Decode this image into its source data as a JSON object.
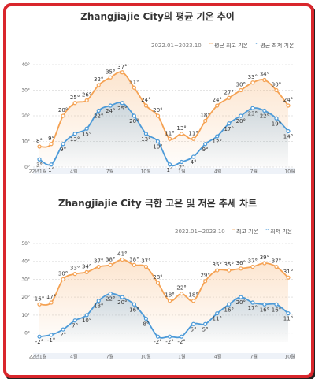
{
  "chart_data": [
    {
      "type": "line",
      "title": "Zhangjiajie City의 평균 기온 추이",
      "period": "2022.01~2023.10",
      "legend": [
        {
          "name": "평균 최고 기온",
          "color": "#f5a253"
        },
        {
          "name": "평균 최저 기온",
          "color": "#4c9ad8"
        }
      ],
      "yticks": [
        "0°",
        "10°",
        "20°",
        "30°",
        "40°"
      ],
      "ylim": [
        0,
        40
      ],
      "xticks": [
        "22년1월",
        "4월",
        "7월",
        "10월",
        "1월",
        "4월",
        "7월",
        "10월"
      ],
      "series": [
        {
          "name": "평균 최고 기온",
          "color": "#f5a253",
          "values": [
            8,
            9,
            20,
            25,
            26,
            32,
            35,
            37,
            31,
            24,
            20,
            11,
            13,
            11,
            18,
            24,
            27,
            30,
            33,
            34,
            30,
            24
          ],
          "labels": [
            "8°",
            "9°",
            "20°",
            "25°",
            "26°",
            "32°",
            "35°",
            "37°",
            "31°",
            "24°",
            "20°",
            "11°",
            "13°",
            "11°",
            "18°",
            "24°",
            "27°",
            "30°",
            "33°",
            "34°",
            "30°",
            "24°"
          ]
        },
        {
          "name": "평균 최저 기온",
          "color": "#4c9ad8",
          "values": [
            3,
            1,
            9,
            13,
            15,
            22,
            24,
            25,
            20,
            13,
            10,
            1,
            2,
            4,
            9,
            12,
            17,
            20,
            23,
            22,
            19,
            14
          ],
          "labels": [
            "3°",
            "1°",
            "9°",
            "13°",
            "15°",
            "22°",
            "24°",
            "25°",
            "20°",
            "13°",
            "10°",
            "1°",
            "2°",
            "4°",
            "9°",
            "12°",
            "17°",
            "20°",
            "23°",
            "22°",
            "19°",
            "14°"
          ]
        }
      ]
    },
    {
      "type": "line",
      "title": "Zhangjiajie City 극한 고온 및 저온 추세 차트",
      "period": "2022.01~2023.10",
      "legend": [
        {
          "name": "최고 기온",
          "color": "#f5a253"
        },
        {
          "name": "최저 기온",
          "color": "#4c9ad8"
        }
      ],
      "yticks": [
        "0°",
        "10°",
        "20°",
        "30°",
        "40°",
        "50°"
      ],
      "ylim": [
        -5,
        50
      ],
      "xticks": [
        "22년1월",
        "4월",
        "7월",
        "10월",
        "1월",
        "4월",
        "7월",
        "10월"
      ],
      "series": [
        {
          "name": "최고 기온",
          "color": "#f5a253",
          "values": [
            16,
            17,
            30,
            33,
            34,
            37,
            38,
            41,
            38,
            37,
            28,
            18,
            22,
            18,
            29,
            35,
            35,
            36,
            37,
            39,
            37,
            31
          ],
          "labels": [
            "16°",
            "17°",
            "30°",
            "33°",
            "34°",
            "37°",
            "38°",
            "41°",
            "38°",
            "37°",
            "28°",
            "18°",
            "22°",
            "18°",
            "29°",
            "35°",
            "35°",
            "36°",
            "37°",
            "39°",
            "37°",
            "31°"
          ]
        },
        {
          "name": "최저 기온",
          "color": "#4c9ad8",
          "values": [
            -2,
            -1,
            2,
            7,
            10,
            18,
            22,
            20,
            16,
            8,
            -2,
            -2,
            -2,
            5,
            5,
            11,
            16,
            20,
            17,
            16,
            16,
            11
          ],
          "labels": [
            "-2°",
            "-1°",
            "2°",
            "7°",
            "10°",
            "18°",
            "22°",
            "20°",
            "16°",
            "8°",
            "-2°",
            "-2°",
            "-2°",
            "5°",
            "5°",
            "11°",
            "16°",
            "20°",
            "17°",
            "16°",
            "16°",
            "11°"
          ]
        }
      ]
    }
  ]
}
